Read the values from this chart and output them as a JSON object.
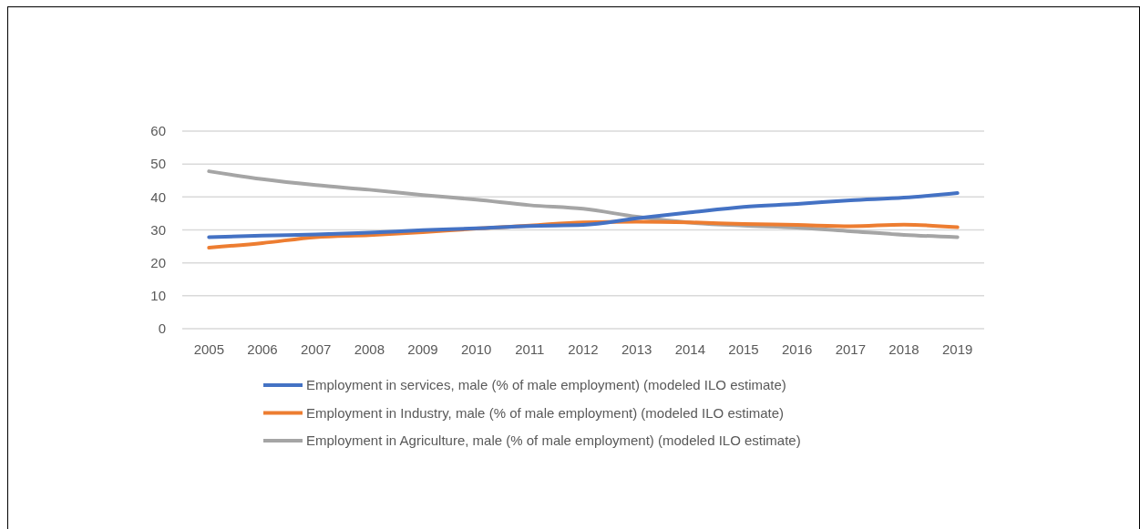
{
  "chart_data": {
    "type": "line",
    "categories": [
      "2005",
      "2006",
      "2007",
      "2008",
      "2009",
      "2010",
      "2011",
      "2012",
      "2013",
      "2014",
      "2015",
      "2016",
      "2017",
      "2018",
      "2019"
    ],
    "series": [
      {
        "name": "Employment in services,  male (% of male employment)  (modeled ILO estimate)",
        "color": "#4472c4",
        "values": [
          27.8,
          28.3,
          28.6,
          29.2,
          29.9,
          30.5,
          31.2,
          31.5,
          33.5,
          35.3,
          37.0,
          37.9,
          39.0,
          39.8,
          41.2
        ]
      },
      {
        "name": "Employment in Industry,  male (% of male employment)  (modeled ILO estimate)",
        "color": "#ed7d31",
        "values": [
          24.6,
          26.0,
          27.8,
          28.4,
          29.3,
          30.4,
          31.3,
          32.3,
          32.5,
          32.3,
          31.8,
          31.5,
          31.1,
          31.6,
          30.8
        ]
      },
      {
        "name": "Employment in Agriculture,  male (% of male employment)  (modeled ILO estimate)",
        "color": "#a5a5a5",
        "values": [
          47.8,
          45.4,
          43.6,
          42.2,
          40.6,
          39.2,
          37.5,
          36.4,
          34.0,
          32.2,
          31.3,
          30.7,
          29.6,
          28.5,
          27.8
        ]
      }
    ],
    "ylim": [
      0,
      60
    ],
    "yticks": [
      0,
      10,
      20,
      30,
      40,
      50,
      60
    ],
    "grid": "y",
    "legend": "bottom",
    "marker": "none",
    "line_style": "solid"
  }
}
